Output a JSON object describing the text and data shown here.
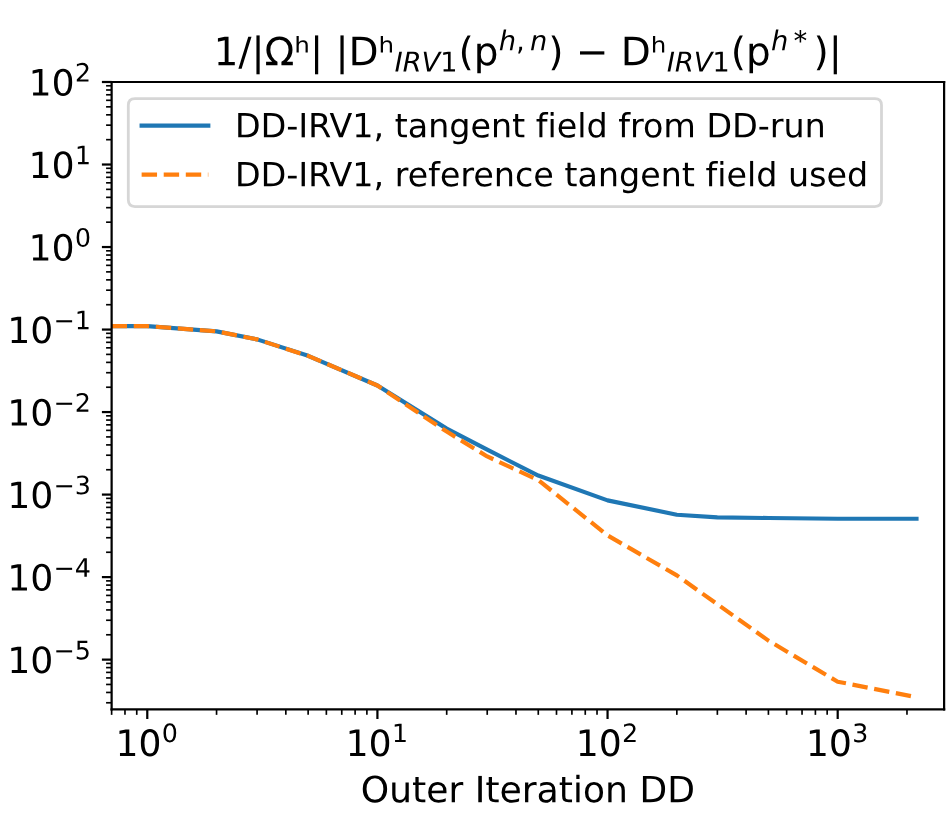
{
  "chart_data": {
    "type": "line",
    "title": "1/|Ωʰ| |Dʰ$_{IRV1}$(p$^{h,n}$) − Dʰ$_{IRV1}$(p$^{h*}$)|",
    "xlabel": "Outer Iteration DD",
    "log": "xy",
    "xlim": [
      0.7,
      2900
    ],
    "ylim": [
      2.5e-06,
      100
    ],
    "xticks": [
      {
        "value": 1,
        "label": "10$^{0}$"
      },
      {
        "value": 10,
        "label": "10$^{1}$"
      },
      {
        "value": 100,
        "label": "10$^{2}$"
      },
      {
        "value": 1000,
        "label": "10$^{3}$"
      }
    ],
    "yticks": [
      {
        "value": 1e-05,
        "label": "10$^{−5}$"
      },
      {
        "value": 0.0001,
        "label": "10$^{−4}$"
      },
      {
        "value": 0.001,
        "label": "10$^{−3}$"
      },
      {
        "value": 0.01,
        "label": "10$^{−2}$"
      },
      {
        "value": 0.1,
        "label": "10$^{−1}$"
      },
      {
        "value": 1,
        "label": "10$^{0}$"
      },
      {
        "value": 10,
        "label": "10$^{1}$"
      },
      {
        "value": 100,
        "label": "10$^{2}$"
      }
    ],
    "legend": "top left",
    "grid": false,
    "series": [
      {
        "name": "DD-IRV1, tangent field from DD-run",
        "color": "#1f77b4",
        "line_style": "solid",
        "x": [
          0.7,
          1,
          2,
          3,
          5,
          10,
          20,
          30,
          50,
          100,
          200,
          300,
          500,
          1000,
          2200
        ],
        "values": [
          0.11,
          0.11,
          0.095,
          0.076,
          0.048,
          0.021,
          0.0063,
          0.0035,
          0.0017,
          0.00085,
          0.00057,
          0.00053,
          0.00052,
          0.00051,
          0.00051
        ]
      },
      {
        "name": "DD-IRV1, reference tangent field used",
        "color": "#ff7f0e",
        "line_style": "dashed",
        "x": [
          0.7,
          1,
          2,
          3,
          5,
          10,
          20,
          30,
          50,
          100,
          200,
          500,
          1000,
          2200
        ],
        "values": [
          0.11,
          0.11,
          0.095,
          0.076,
          0.048,
          0.021,
          0.0058,
          0.0029,
          0.0015,
          0.00032,
          0.000105,
          1.7e-05,
          5.4e-06,
          3.5e-06
        ]
      }
    ]
  }
}
